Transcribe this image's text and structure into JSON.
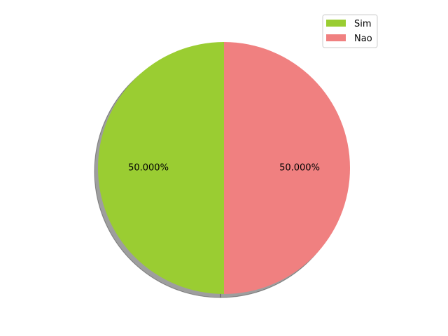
{
  "chart_data": {
    "type": "pie",
    "categories": [
      "Sim",
      "Nao"
    ],
    "values": [
      50.0,
      50.0
    ],
    "labels": [
      "50.000%",
      "50.000%"
    ],
    "colors": [
      "#9acd32",
      "#f08080"
    ],
    "shadow": true,
    "start_angle": 90,
    "legend": {
      "placement": "top-right",
      "entries": [
        "Sim",
        "Nao"
      ]
    }
  }
}
